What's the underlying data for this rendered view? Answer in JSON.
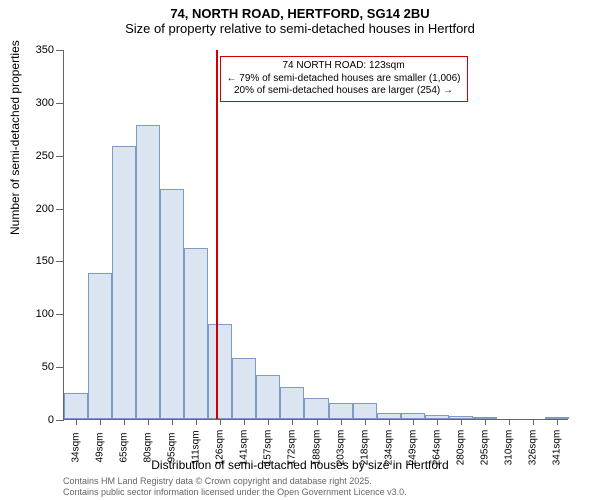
{
  "title_line1": "74, NORTH ROAD, HERTFORD, SG14 2BU",
  "title_line2": "Size of property relative to semi-detached houses in Hertford",
  "y_axis_label": "Number of semi-detached properties",
  "x_axis_label": "Distribution of semi-detached houses by size in Hertford",
  "chart": {
    "type": "histogram",
    "bar_fill": "#dbe5f1",
    "bar_stroke": "#7f9bc4",
    "axis_color": "#666666",
    "reference_color": "#d00000",
    "background": "#ffffff",
    "ylim": [
      0,
      350
    ],
    "yticks": [
      0,
      50,
      100,
      150,
      200,
      250,
      300,
      350
    ],
    "x_start": 34,
    "x_step_label": 15.3,
    "n_xlabels": 21,
    "bars": [
      {
        "x": 34,
        "v": 25
      },
      {
        "x": 49,
        "v": 138
      },
      {
        "x": 65,
        "v": 258
      },
      {
        "x": 80,
        "v": 278
      },
      {
        "x": 95,
        "v": 218
      },
      {
        "x": 111,
        "v": 162
      },
      {
        "x": 126,
        "v": 90
      },
      {
        "x": 141,
        "v": 58
      },
      {
        "x": 157,
        "v": 42
      },
      {
        "x": 172,
        "v": 30
      },
      {
        "x": 188,
        "v": 20
      },
      {
        "x": 203,
        "v": 15
      },
      {
        "x": 218,
        "v": 15
      },
      {
        "x": 234,
        "v": 6
      },
      {
        "x": 249,
        "v": 6
      },
      {
        "x": 264,
        "v": 4
      },
      {
        "x": 280,
        "v": 3
      },
      {
        "x": 295,
        "v": 2
      },
      {
        "x": 310,
        "v": 0
      },
      {
        "x": 326,
        "v": 0
      },
      {
        "x": 341,
        "v": 2
      }
    ],
    "reference_x": 123,
    "xtick_unit": "sqm"
  },
  "annotation": {
    "line1": "74 NORTH ROAD: 123sqm",
    "line2": "← 79% of semi-detached houses are smaller (1,006)",
    "line3": "20% of semi-detached houses are larger (254) →"
  },
  "footer_line1": "Contains HM Land Registry data © Crown copyright and database right 2025.",
  "footer_line2": "Contains public sector information licensed under the Open Government Licence v3.0."
}
